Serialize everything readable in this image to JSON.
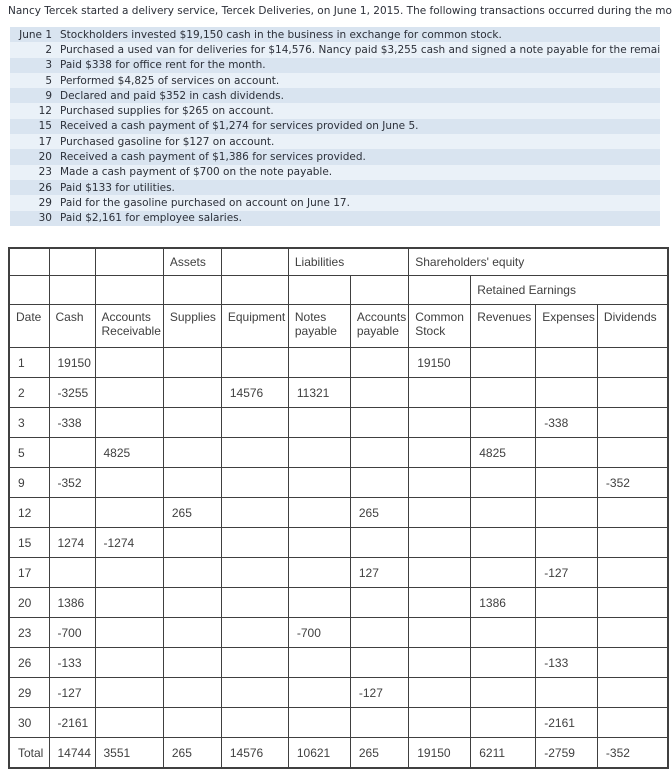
{
  "intro": "Nancy Tercek started a delivery service, Tercek Deliveries, on June 1, 2015. The following transactions occurred during the month of June.",
  "transactions": [
    {
      "date": "June 1",
      "desc": "Stockholders invested $19,150 cash in the business in exchange for common stock."
    },
    {
      "date": "2",
      "desc": "Purchased a used van for deliveries for $14,576. Nancy paid $3,255 cash and signed a note payable for the remaining balance."
    },
    {
      "date": "3",
      "desc": "Paid $338 for office rent for the month."
    },
    {
      "date": "5",
      "desc": "Performed $4,825 of services on account."
    },
    {
      "date": "9",
      "desc": "Declared and paid $352 in cash dividends."
    },
    {
      "date": "12",
      "desc": "Purchased supplies for $265 on account."
    },
    {
      "date": "15",
      "desc": "Received a cash payment of $1,274 for services provided on June 5."
    },
    {
      "date": "17",
      "desc": "Purchased gasoline for $127 on account."
    },
    {
      "date": "20",
      "desc": "Received a cash payment of $1,386 for services provided."
    },
    {
      "date": "23",
      "desc": "Made a cash payment of $700 on the note payable."
    },
    {
      "date": "26",
      "desc": "Paid $133 for utilities."
    },
    {
      "date": "29",
      "desc": "Paid for the gasoline purchased on account on June 17."
    },
    {
      "date": "30",
      "desc": "Paid $2,161 for employee salaries."
    }
  ],
  "worksheet": {
    "group_headers": {
      "assets": "Assets",
      "liabilities": "Liabilities",
      "equity": "Shareholders' equity",
      "retained_earnings": "Retained Earnings"
    },
    "columns": [
      "Date",
      "Cash",
      "Accounts Receivable",
      "Supplies",
      "Equipment",
      "Notes payable",
      "Accounts payable",
      "Common Stock",
      "Revenues",
      "Expenses",
      "Dividends"
    ],
    "rows": [
      [
        "1",
        "19150",
        "",
        "",
        "",
        "",
        "",
        "19150",
        "",
        "",
        ""
      ],
      [
        "2",
        "-3255",
        "",
        "",
        "14576",
        "11321",
        "",
        "",
        "",
        "",
        ""
      ],
      [
        "3",
        "-338",
        "",
        "",
        "",
        "",
        "",
        "",
        "",
        "-338",
        ""
      ],
      [
        "5",
        "",
        "4825",
        "",
        "",
        "",
        "",
        "",
        "4825",
        "",
        ""
      ],
      [
        "9",
        "-352",
        "",
        "",
        "",
        "",
        "",
        "",
        "",
        "",
        "-352"
      ],
      [
        "12",
        "",
        "",
        "265",
        "",
        "",
        "265",
        "",
        "",
        "",
        ""
      ],
      [
        "15",
        "1274",
        "-1274",
        "",
        "",
        "",
        "",
        "",
        "",
        "",
        ""
      ],
      [
        "17",
        "",
        "",
        "",
        "",
        "",
        "127",
        "",
        "",
        "-127",
        ""
      ],
      [
        "20",
        "1386",
        "",
        "",
        "",
        "",
        "",
        "",
        "1386",
        "",
        ""
      ],
      [
        "23",
        "-700",
        "",
        "",
        "",
        "-700",
        "",
        "",
        "",
        "",
        ""
      ],
      [
        "26",
        "-133",
        "",
        "",
        "",
        "",
        "",
        "",
        "",
        "-133",
        ""
      ],
      [
        "29",
        "-127",
        "",
        "",
        "",
        "",
        "-127",
        "",
        "",
        "",
        ""
      ],
      [
        "30",
        "-2161",
        "",
        "",
        "",
        "",
        "",
        "",
        "",
        "-2161",
        ""
      ],
      [
        "Total",
        "14744",
        "3551",
        "265",
        "14576",
        "10621",
        "265",
        "19150",
        "6211",
        "-2759",
        "-352"
      ]
    ]
  },
  "colors": {
    "band_dark": "#d9e4f0",
    "band_light": "#eaf1f8",
    "table_border": "#404040",
    "text": "#2b2f38",
    "table_text": "#404040",
    "background": "#ffffff"
  }
}
